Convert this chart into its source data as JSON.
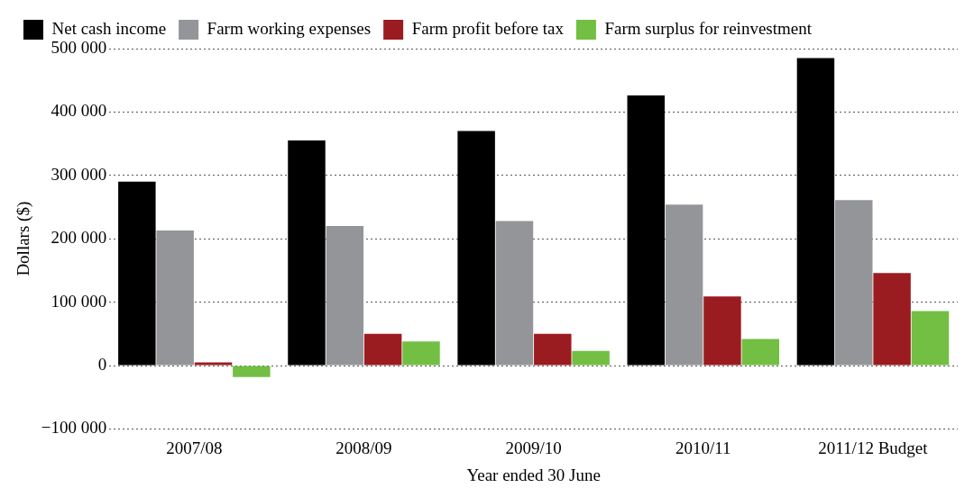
{
  "chart_data": {
    "type": "bar",
    "xlabel": "Year ended 30 June",
    "ylabel": "Dollars ($)",
    "categories": [
      "2007/08",
      "2008/09",
      "2009/10",
      "2010/11",
      "2011/12 Budget"
    ],
    "series": [
      {
        "name": "Net cash income",
        "color": "#000000",
        "values": [
          290000,
          355000,
          370000,
          426000,
          485000
        ]
      },
      {
        "name": "Farm working expenses",
        "color": "#939598",
        "values": [
          213000,
          220000,
          228000,
          254000,
          261000
        ]
      },
      {
        "name": "Farm profit before tax",
        "color": "#9b1c20",
        "values": [
          5000,
          50000,
          50000,
          109000,
          146000
        ]
      },
      {
        "name": "Farm surplus for reinvestment",
        "color": "#72bf44",
        "values": [
          -18000,
          38000,
          23000,
          42000,
          86000
        ]
      }
    ],
    "ylim": [
      -100000,
      500000
    ],
    "yticks": [
      {
        "value": -100000,
        "label": "−100 000"
      },
      {
        "value": 0,
        "label": "0"
      },
      {
        "value": 100000,
        "label": "100 000"
      },
      {
        "value": 200000,
        "label": "200 000"
      },
      {
        "value": 300000,
        "label": "300 000"
      },
      {
        "value": 400000,
        "label": "400 000"
      },
      {
        "value": 500000,
        "label": "500 000"
      }
    ],
    "grid": "y",
    "legend": "top left"
  }
}
